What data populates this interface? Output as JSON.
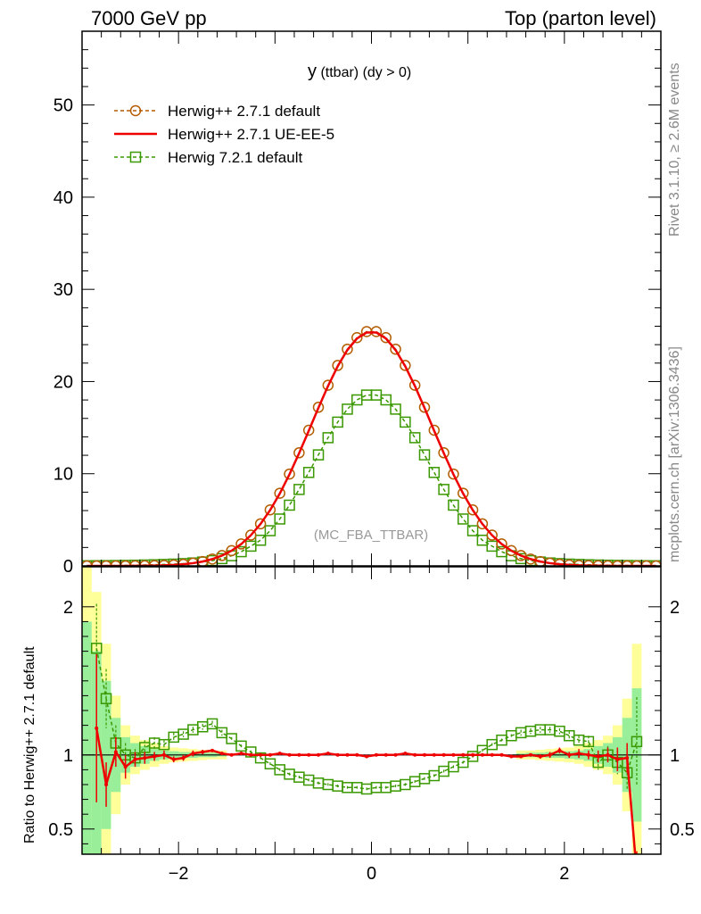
{
  "header": {
    "left": "7000 GeV pp",
    "right": "Top (parton level)"
  },
  "side_labels": {
    "top": "Rivet 3.1.10, ≥ 2.6M events",
    "bottom": "mcplots.cern.ch [arXiv:1306.3436]"
  },
  "chart_data": {
    "type": "line",
    "title_main": "y",
    "title_rest": " (ttbar) (dy > 0)",
    "watermark": "(MC_FBA_TTBAR)",
    "xlim": [
      -3.0,
      3.0
    ],
    "main_ylim": [
      0,
      58
    ],
    "main_yticks": [
      0,
      10,
      20,
      30,
      40,
      50
    ],
    "xticks": [
      -2,
      0,
      2
    ],
    "ratio_ylabel": "Ratio to Herwig++ 2.7.1 default",
    "ratio_ylim": [
      0.33,
      2.27
    ],
    "ratio_yticks": [
      0.5,
      1,
      2
    ],
    "ratio_ytick_labels": [
      "0.5",
      "1",
      "2"
    ],
    "gauss": {
      "sigma_1": 0.62,
      "sigma_2": 0.59,
      "center_2": 0.04
    },
    "series": [
      {
        "name": "Herwig++ 2.7.1 default",
        "color": "#b35c00",
        "style": "dashed-circle",
        "peak": 25.5
      },
      {
        "name": "Herwig++ 2.7.1 UE-EE-5",
        "color": "#ee0000",
        "style": "solid",
        "peak": 25.4
      },
      {
        "name": "Herwig 7.2.1 default",
        "color": "#3a9800",
        "style": "dashed-square",
        "peak": 18.6
      }
    ],
    "ratio_red": {
      "x": [
        -2.85,
        -2.75,
        -2.65,
        -2.55,
        -2.45,
        -2.35,
        -2.25,
        -2.15,
        -2.05,
        -1.95,
        -1.85,
        -1.75,
        -1.65,
        -1.55,
        -1.45,
        -1.35,
        -1.25,
        -1.15,
        -1.05,
        -0.95,
        -0.85,
        -0.75,
        -0.65,
        -0.55,
        -0.45,
        -0.35,
        -0.25,
        -0.15,
        -0.05,
        0.05,
        0.15,
        0.25,
        0.35,
        0.45,
        0.55,
        0.65,
        0.75,
        0.85,
        0.95,
        1.05,
        1.15,
        1.25,
        1.35,
        1.45,
        1.55,
        1.65,
        1.75,
        1.85,
        1.95,
        2.05,
        2.15,
        2.25,
        2.35,
        2.45,
        2.55,
        2.65,
        2.75
      ],
      "y": [
        1.18,
        0.8,
        1.02,
        0.92,
        0.97,
        0.98,
        0.99,
        1.0,
        0.97,
        0.98,
        1.01,
        1.02,
        1.03,
        1.01,
        1.0,
        1.01,
        1.0,
        1.0,
        1.0,
        1.01,
        1.0,
        1.0,
        1.0,
        1.0,
        1.01,
        1.0,
        1.0,
        1.0,
        0.99,
        1.0,
        1.0,
        1.0,
        1.01,
        1.0,
        1.0,
        1.0,
        1.0,
        1.0,
        1.0,
        1.0,
        1.0,
        1.0,
        1.0,
        0.99,
        0.99,
        1.0,
        0.99,
        1.0,
        1.03,
        1.0,
        1.01,
        1.0,
        0.99,
        1.0,
        0.97,
        0.98,
        0.2
      ],
      "err": [
        0.5,
        0.15,
        0.1,
        0.08,
        0.05,
        0.04,
        0.03,
        0.03,
        0.02,
        0.02,
        0.02,
        0.015,
        0.01,
        0.01,
        0.01,
        0.01,
        0.01,
        0.01,
        0.01,
        0.01,
        0.01,
        0.01,
        0.01,
        0.01,
        0.01,
        0.01,
        0.01,
        0.01,
        0.01,
        0.01,
        0.01,
        0.01,
        0.01,
        0.01,
        0.01,
        0.01,
        0.01,
        0.01,
        0.01,
        0.01,
        0.01,
        0.01,
        0.01,
        0.01,
        0.01,
        0.01,
        0.015,
        0.02,
        0.02,
        0.02,
        0.03,
        0.03,
        0.04,
        0.05,
        0.08,
        0.1,
        0.15
      ]
    },
    "ratio_green": {
      "x": [
        -2.85,
        -2.75,
        -2.65,
        -2.55,
        -2.45,
        -2.35,
        -2.25,
        -2.15,
        -2.05,
        -1.95,
        -1.85,
        -1.75,
        -1.65,
        -1.55,
        -1.45,
        -1.35,
        -1.25,
        -1.15,
        -1.05,
        -0.95,
        -0.85,
        -0.75,
        -0.65,
        -0.55,
        -0.45,
        -0.35,
        -0.25,
        -0.15,
        -0.05,
        0.05,
        0.15,
        0.25,
        0.35,
        0.45,
        0.55,
        0.65,
        0.75,
        0.85,
        0.95,
        1.05,
        1.15,
        1.25,
        1.35,
        1.45,
        1.55,
        1.65,
        1.75,
        1.85,
        1.95,
        2.05,
        2.15,
        2.25,
        2.35,
        2.45,
        2.55,
        2.65,
        2.75
      ],
      "y": [
        1.72,
        1.38,
        1.08,
        1.0,
        0.98,
        1.05,
        1.08,
        1.07,
        1.12,
        1.14,
        1.17,
        1.19,
        1.21,
        1.15,
        1.11,
        1.06,
        1.02,
        0.98,
        0.94,
        0.9,
        0.87,
        0.85,
        0.83,
        0.81,
        0.8,
        0.79,
        0.78,
        0.78,
        0.77,
        0.78,
        0.78,
        0.79,
        0.8,
        0.82,
        0.84,
        0.86,
        0.89,
        0.92,
        0.95,
        0.99,
        1.03,
        1.07,
        1.1,
        1.13,
        1.15,
        1.16,
        1.17,
        1.17,
        1.16,
        1.13,
        1.1,
        1.09,
        0.95,
        1.0,
        0.95,
        0.88,
        1.09
      ],
      "err": [
        0.3,
        0.2,
        0.12,
        0.08,
        0.06,
        0.05,
        0.04,
        0.03,
        0.03,
        0.02,
        0.02,
        0.02,
        0.02,
        0.02,
        0.01,
        0.01,
        0.01,
        0.01,
        0.01,
        0.01,
        0.01,
        0.01,
        0.01,
        0.01,
        0.01,
        0.01,
        0.01,
        0.01,
        0.01,
        0.01,
        0.01,
        0.01,
        0.01,
        0.01,
        0.01,
        0.01,
        0.01,
        0.01,
        0.01,
        0.01,
        0.01,
        0.01,
        0.01,
        0.01,
        0.02,
        0.02,
        0.02,
        0.02,
        0.02,
        0.03,
        0.03,
        0.04,
        0.05,
        0.06,
        0.08,
        0.12,
        0.3
      ]
    },
    "band_green": {
      "x": [
        -2.95,
        -2.85,
        -2.75,
        -2.65,
        -2.55,
        -2.45,
        -2.35,
        -2.25,
        -2.15,
        -2.05,
        -1.95,
        -1.85,
        -1.75,
        -1.65,
        -1.55,
        1.55,
        1.65,
        1.75,
        1.85,
        1.95,
        2.05,
        2.15,
        2.25,
        2.35,
        2.45,
        2.55,
        2.65,
        2.75
      ],
      "half": [
        0.9,
        0.7,
        0.5,
        0.25,
        0.12,
        0.08,
        0.06,
        0.04,
        0.03,
        0.025,
        0.02,
        0.02,
        0.015,
        0.015,
        0.01,
        0.01,
        0.015,
        0.015,
        0.02,
        0.02,
        0.025,
        0.03,
        0.04,
        0.06,
        0.08,
        0.12,
        0.25,
        0.45
      ]
    },
    "band_yellow": {
      "x": [
        -2.95,
        -2.85,
        -2.75,
        -2.65,
        -2.55,
        -2.45,
        -2.35,
        -2.25,
        -2.15,
        -2.05,
        -1.95,
        -1.85,
        -1.75,
        -1.65,
        -1.55,
        1.55,
        1.65,
        1.75,
        1.85,
        1.95,
        2.05,
        2.15,
        2.25,
        2.35,
        2.45,
        2.55,
        2.65,
        2.75
      ],
      "half": [
        1.3,
        1.1,
        0.75,
        0.4,
        0.2,
        0.13,
        0.1,
        0.08,
        0.06,
        0.05,
        0.045,
        0.04,
        0.035,
        0.03,
        0.03,
        0.03,
        0.03,
        0.035,
        0.04,
        0.045,
        0.05,
        0.06,
        0.08,
        0.1,
        0.13,
        0.2,
        0.38,
        0.75
      ]
    }
  }
}
